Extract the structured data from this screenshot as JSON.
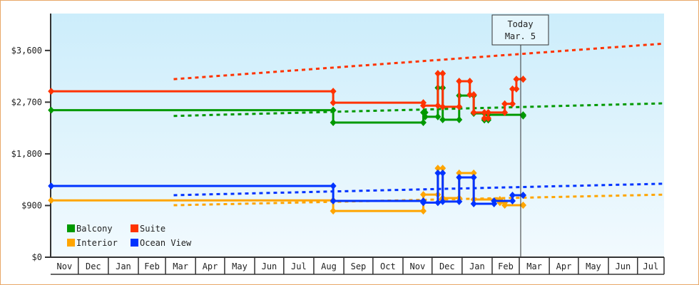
{
  "chart_data": {
    "type": "line",
    "step": true,
    "currency": "$",
    "today_label": [
      "Today",
      "Mar. 5"
    ],
    "today": "Mar 5",
    "ylim": [
      0,
      4240
    ],
    "yticks": [
      0,
      900,
      1800,
      2700,
      3600
    ],
    "ytick_labels": [
      "$0",
      "$900",
      "$1,800",
      "$2,700",
      "$3,600"
    ],
    "xtick_labels": [
      "Nov",
      "Dec",
      "Jan",
      "Feb",
      "Mar",
      "Apr",
      "May",
      "Jun",
      "Jul",
      "Aug",
      "Sep",
      "Oct",
      "Nov",
      "Dec",
      "Jan",
      "Feb",
      "Mar",
      "Apr",
      "May",
      "Jun",
      "Jul"
    ],
    "x_start": "Nov 3",
    "x_end": "Jul 29",
    "grid": false,
    "legend_position": "bottom-left",
    "series": [
      {
        "name": "Balcony",
        "color": "#009900",
        "points": [
          [
            "Nov 3",
            2560
          ],
          [
            "Aug 21",
            2345
          ],
          [
            "Nov 22",
            2520
          ],
          [
            "Nov 24",
            2445
          ],
          [
            "Dec 7",
            2950
          ],
          [
            "Dec 12",
            2395
          ],
          [
            "Dec 29",
            2815
          ],
          [
            "Jan 13",
            2505
          ],
          [
            "Jan 24",
            2390
          ],
          [
            "Jan 28",
            2480
          ],
          [
            "Mar 5",
            2460
          ]
        ],
        "projection": [
          [
            "Mar 5",
            2460
          ],
          [
            "Jul 29",
            2680
          ]
        ]
      },
      {
        "name": "Suite",
        "color": "#ff3300",
        "points": [
          [
            "Nov 3",
            2890
          ],
          [
            "Aug 21",
            2690
          ],
          [
            "Nov 22",
            2640
          ],
          [
            "Dec 7",
            3200
          ],
          [
            "Dec 12",
            2620
          ],
          [
            "Dec 29",
            3065
          ],
          [
            "Jan 9",
            2830
          ],
          [
            "Jan 13",
            2520
          ],
          [
            "Jan 24",
            2420
          ],
          [
            "Jan 28",
            2520
          ],
          [
            "Feb 14",
            2670
          ],
          [
            "Feb 22",
            2930
          ],
          [
            "Feb 26",
            3100
          ],
          [
            "Mar 5",
            3100
          ]
        ],
        "projection": [
          [
            "Mar 5",
            3100
          ],
          [
            "Jul 29",
            3720
          ]
        ]
      },
      {
        "name": "Interior",
        "color": "#ffa500",
        "points": [
          [
            "Nov 3",
            990
          ],
          [
            "Aug 21",
            805
          ],
          [
            "Nov 22",
            1090
          ],
          [
            "Dec 7",
            1550
          ],
          [
            "Dec 12",
            1030
          ],
          [
            "Dec 29",
            1465
          ],
          [
            "Jan 13",
            1005
          ],
          [
            "Feb 9",
            950
          ],
          [
            "Feb 14",
            905
          ],
          [
            "Mar 5",
            905
          ]
        ],
        "projection": [
          [
            "Mar 5",
            905
          ],
          [
            "Jul 29",
            1090
          ]
        ]
      },
      {
        "name": "Ocean View",
        "color": "#0033ff",
        "points": [
          [
            "Nov 3",
            1240
          ],
          [
            "Aug 21",
            980
          ],
          [
            "Nov 22",
            950
          ],
          [
            "Dec 7",
            1465
          ],
          [
            "Dec 12",
            970
          ],
          [
            "Dec 29",
            1390
          ],
          [
            "Jan 13",
            930
          ],
          [
            "Feb 3",
            980
          ],
          [
            "Feb 22",
            1080
          ],
          [
            "Mar 5",
            1080
          ]
        ],
        "projection": [
          [
            "Mar 5",
            1080
          ],
          [
            "Jul 29",
            1280
          ]
        ]
      }
    ]
  }
}
